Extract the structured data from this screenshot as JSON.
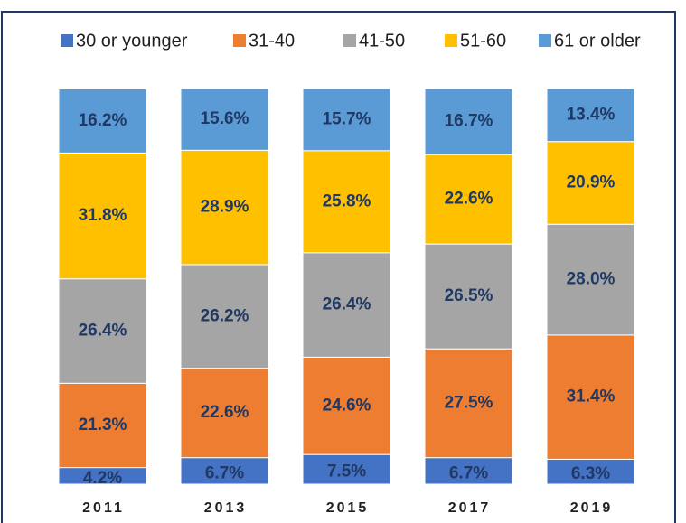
{
  "chart_data": {
    "type": "stacked_bar",
    "categories": [
      "2011",
      "2013",
      "2015",
      "2017",
      "2019"
    ],
    "series": [
      {
        "name": "30 or younger",
        "color": "#4472c4",
        "values": [
          4.2,
          6.7,
          7.5,
          6.7,
          6.3
        ],
        "value_labels": [
          "4.2%",
          "6.7%",
          "7.5%",
          "6.7%",
          "6.3%"
        ]
      },
      {
        "name": "31-40",
        "color": "#ed7d31",
        "values": [
          21.3,
          22.6,
          24.6,
          27.5,
          31.4
        ],
        "value_labels": [
          "21.3%",
          "22.6%",
          "24.6%",
          "27.5%",
          "31.4%"
        ]
      },
      {
        "name": "41-50",
        "color": "#a5a5a5",
        "values": [
          26.4,
          26.2,
          26.4,
          26.5,
          28.0
        ],
        "value_labels": [
          "26.4%",
          "26.2%",
          "26.4%",
          "26.5%",
          "28.0%"
        ]
      },
      {
        "name": "51-60",
        "color": "#ffc000",
        "values": [
          31.8,
          28.9,
          25.8,
          22.6,
          20.9
        ],
        "value_labels": [
          "31.8%",
          "28.9%",
          "25.8%",
          "22.6%",
          "20.9%"
        ]
      },
      {
        "name": "61 or older",
        "color": "#5b9bd5",
        "values": [
          16.2,
          15.6,
          15.7,
          16.7,
          13.4
        ],
        "value_labels": [
          "16.2%",
          "15.6%",
          "15.7%",
          "16.7%",
          "13.4%"
        ]
      }
    ],
    "ylim": [
      0,
      100
    ],
    "legend": "top"
  }
}
